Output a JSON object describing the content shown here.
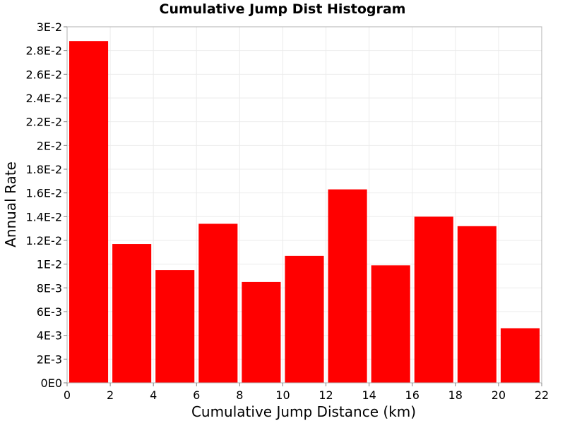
{
  "chart_data": {
    "type": "bar",
    "title": "Cumulative Jump Dist Histogram",
    "xlabel": "Cumulative Jump Distance (km)",
    "ylabel": "Annual Rate",
    "xlim": [
      0,
      22
    ],
    "ylim": [
      0,
      0.03
    ],
    "grid": true,
    "bar_color": "#ff0000",
    "bin_width": 2,
    "x_ticks": [
      0,
      2,
      4,
      6,
      8,
      10,
      12,
      14,
      16,
      18,
      20,
      22
    ],
    "x_tick_labels": [
      "0",
      "2",
      "4",
      "6",
      "8",
      "10",
      "12",
      "14",
      "16",
      "18",
      "20",
      "22"
    ],
    "y_ticks": [
      0,
      0.002,
      0.004,
      0.006,
      0.008,
      0.01,
      0.012,
      0.014,
      0.016,
      0.018,
      0.02,
      0.022,
      0.024,
      0.026,
      0.028,
      0.03
    ],
    "y_tick_labels": [
      "0E0",
      "2E-3",
      "4E-3",
      "6E-3",
      "8E-3",
      "1E-2",
      "1.2E-2",
      "1.4E-2",
      "1.6E-2",
      "1.8E-2",
      "2E-2",
      "2.2E-2",
      "2.4E-2",
      "2.6E-2",
      "2.8E-2",
      "3E-2"
    ],
    "bins": [
      {
        "x": 1,
        "value": 0.0288
      },
      {
        "x": 3,
        "value": 0.0117
      },
      {
        "x": 5,
        "value": 0.0095
      },
      {
        "x": 7,
        "value": 0.0134
      },
      {
        "x": 9,
        "value": 0.0085
      },
      {
        "x": 11,
        "value": 0.0107
      },
      {
        "x": 13,
        "value": 0.0163
      },
      {
        "x": 15,
        "value": 0.0099
      },
      {
        "x": 17,
        "value": 0.014
      },
      {
        "x": 19,
        "value": 0.0132
      },
      {
        "x": 21,
        "value": 0.0046
      }
    ]
  }
}
